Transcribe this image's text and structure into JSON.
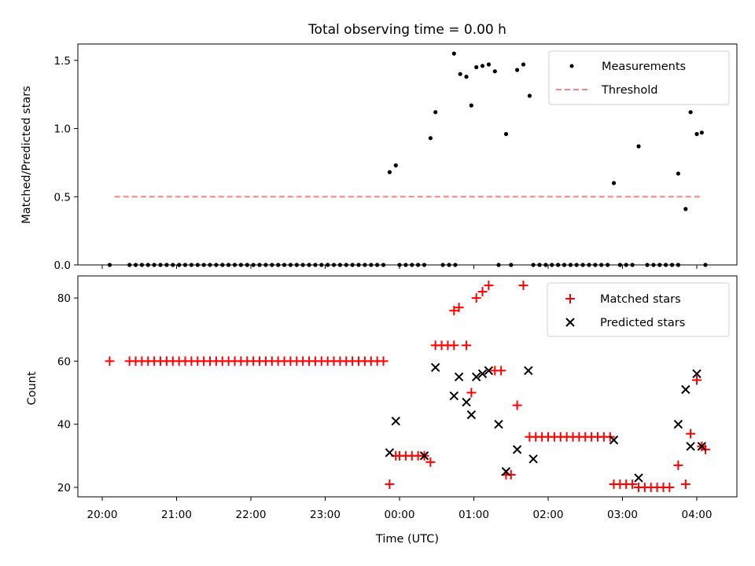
{
  "title": "Total observing time = 0.00 h",
  "x_label": "Time (UTC)",
  "x_ticks": [
    "20:00",
    "21:00",
    "22:00",
    "23:00",
    "00:00",
    "01:00",
    "02:00",
    "03:00",
    "04:00"
  ],
  "colors": {
    "measurements": "#000000",
    "threshold": "#ff8080",
    "matched": "#ff0000",
    "predicted": "#000000"
  },
  "chart_data": [
    {
      "type": "scatter",
      "panel": "top",
      "ylabel": "Matched/Predicted stars",
      "ylim": [
        0,
        1.62
      ],
      "yticks": [
        "0.0",
        "0.5",
        "1.0",
        "1.5"
      ],
      "legend": {
        "placement": "upper right",
        "entries": [
          "Measurements",
          "Threshold"
        ]
      },
      "threshold": {
        "name": "Threshold",
        "value": 0.5,
        "x_range": [
          "20:10",
          "04:05"
        ]
      },
      "series": [
        {
          "name": "Measurements",
          "points": [
            [
              "20:06",
              0
            ],
            [
              "20:22",
              0
            ],
            [
              "20:27",
              0
            ],
            [
              "20:32",
              0
            ],
            [
              "20:37",
              0
            ],
            [
              "20:42",
              0
            ],
            [
              "20:47",
              0
            ],
            [
              "20:52",
              0
            ],
            [
              "20:57",
              0
            ],
            [
              "21:02",
              0
            ],
            [
              "21:07",
              0
            ],
            [
              "21:12",
              0
            ],
            [
              "21:17",
              0
            ],
            [
              "21:22",
              0
            ],
            [
              "21:27",
              0
            ],
            [
              "21:32",
              0
            ],
            [
              "21:37",
              0
            ],
            [
              "21:42",
              0
            ],
            [
              "21:47",
              0
            ],
            [
              "21:52",
              0
            ],
            [
              "21:57",
              0
            ],
            [
              "22:02",
              0
            ],
            [
              "22:07",
              0
            ],
            [
              "22:12",
              0
            ],
            [
              "22:17",
              0
            ],
            [
              "22:22",
              0
            ],
            [
              "22:27",
              0
            ],
            [
              "22:32",
              0
            ],
            [
              "22:37",
              0
            ],
            [
              "22:42",
              0
            ],
            [
              "22:47",
              0
            ],
            [
              "22:52",
              0
            ],
            [
              "22:57",
              0
            ],
            [
              "23:02",
              0
            ],
            [
              "23:07",
              0
            ],
            [
              "23:12",
              0
            ],
            [
              "23:17",
              0
            ],
            [
              "23:22",
              0
            ],
            [
              "23:27",
              0
            ],
            [
              "23:32",
              0
            ],
            [
              "23:37",
              0
            ],
            [
              "23:42",
              0
            ],
            [
              "23:47",
              0
            ],
            [
              "23:52",
              0.68
            ],
            [
              "23:57",
              0.73
            ],
            [
              "00:00",
              0
            ],
            [
              "00:05",
              0
            ],
            [
              "00:10",
              0
            ],
            [
              "00:15",
              0
            ],
            [
              "00:20",
              0
            ],
            [
              "00:25",
              0.93
            ],
            [
              "00:29",
              1.12
            ],
            [
              "00:35",
              0
            ],
            [
              "00:40",
              0
            ],
            [
              "00:45",
              0
            ],
            [
              "00:44",
              1.55
            ],
            [
              "00:49",
              1.4
            ],
            [
              "00:54",
              1.38
            ],
            [
              "00:58",
              1.17
            ],
            [
              "01:02",
              1.45
            ],
            [
              "01:07",
              1.46
            ],
            [
              "01:12",
              1.47
            ],
            [
              "01:17",
              1.42
            ],
            [
              "01:20",
              0
            ],
            [
              "01:26",
              0.96
            ],
            [
              "01:30",
              0
            ],
            [
              "01:35",
              1.43
            ],
            [
              "01:40",
              1.47
            ],
            [
              "01:45",
              1.24
            ],
            [
              "01:48",
              0
            ],
            [
              "01:53",
              0
            ],
            [
              "01:58",
              0
            ],
            [
              "02:03",
              0
            ],
            [
              "02:08",
              0
            ],
            [
              "02:13",
              0
            ],
            [
              "02:18",
              0
            ],
            [
              "02:23",
              0
            ],
            [
              "02:28",
              0
            ],
            [
              "02:33",
              0
            ],
            [
              "02:38",
              0
            ],
            [
              "02:43",
              0
            ],
            [
              "02:48",
              0
            ],
            [
              "02:53",
              0.6
            ],
            [
              "02:58",
              0
            ],
            [
              "03:03",
              0
            ],
            [
              "03:08",
              0
            ],
            [
              "03:13",
              0.87
            ],
            [
              "03:20",
              0
            ],
            [
              "03:25",
              0
            ],
            [
              "03:30",
              0
            ],
            [
              "03:35",
              0
            ],
            [
              "03:40",
              0
            ],
            [
              "03:45",
              0
            ],
            [
              "03:45",
              0.67
            ],
            [
              "03:51",
              0.41
            ],
            [
              "03:55",
              1.12
            ],
            [
              "04:00",
              0.96
            ],
            [
              "04:04",
              0.97
            ],
            [
              "04:07",
              0
            ]
          ]
        }
      ]
    },
    {
      "type": "scatter",
      "panel": "bottom",
      "ylabel": "Count",
      "ylim": [
        17,
        87
      ],
      "yticks": [
        "20",
        "40",
        "60",
        "80"
      ],
      "legend": {
        "placement": "upper right",
        "entries": [
          "Matched stars",
          "Predicted stars"
        ]
      },
      "series": [
        {
          "name": "Matched stars",
          "marker": "+",
          "points": [
            [
              "20:06",
              60
            ],
            [
              "20:22",
              60
            ],
            [
              "20:27",
              60
            ],
            [
              "20:32",
              60
            ],
            [
              "20:37",
              60
            ],
            [
              "20:42",
              60
            ],
            [
              "20:47",
              60
            ],
            [
              "20:52",
              60
            ],
            [
              "20:57",
              60
            ],
            [
              "21:02",
              60
            ],
            [
              "21:07",
              60
            ],
            [
              "21:12",
              60
            ],
            [
              "21:17",
              60
            ],
            [
              "21:22",
              60
            ],
            [
              "21:27",
              60
            ],
            [
              "21:32",
              60
            ],
            [
              "21:37",
              60
            ],
            [
              "21:42",
              60
            ],
            [
              "21:47",
              60
            ],
            [
              "21:52",
              60
            ],
            [
              "21:57",
              60
            ],
            [
              "22:02",
              60
            ],
            [
              "22:07",
              60
            ],
            [
              "22:12",
              60
            ],
            [
              "22:17",
              60
            ],
            [
              "22:22",
              60
            ],
            [
              "22:27",
              60
            ],
            [
              "22:32",
              60
            ],
            [
              "22:37",
              60
            ],
            [
              "22:42",
              60
            ],
            [
              "22:47",
              60
            ],
            [
              "22:52",
              60
            ],
            [
              "22:57",
              60
            ],
            [
              "23:02",
              60
            ],
            [
              "23:07",
              60
            ],
            [
              "23:12",
              60
            ],
            [
              "23:17",
              60
            ],
            [
              "23:22",
              60
            ],
            [
              "23:27",
              60
            ],
            [
              "23:32",
              60
            ],
            [
              "23:37",
              60
            ],
            [
              "23:42",
              60
            ],
            [
              "23:47",
              60
            ],
            [
              "23:52",
              21
            ],
            [
              "23:57",
              30
            ],
            [
              "00:00",
              30
            ],
            [
              "00:05",
              30
            ],
            [
              "00:10",
              30
            ],
            [
              "00:15",
              30
            ],
            [
              "00:20",
              30
            ],
            [
              "00:25",
              28
            ],
            [
              "00:29",
              65
            ],
            [
              "00:34",
              65
            ],
            [
              "00:39",
              65
            ],
            [
              "00:44",
              65
            ],
            [
              "00:44",
              76
            ],
            [
              "00:48",
              77
            ],
            [
              "00:54",
              65
            ],
            [
              "00:58",
              50
            ],
            [
              "01:02",
              80
            ],
            [
              "01:07",
              82
            ],
            [
              "01:12",
              84
            ],
            [
              "01:17",
              57
            ],
            [
              "01:22",
              57
            ],
            [
              "01:26",
              24
            ],
            [
              "01:30",
              24
            ],
            [
              "01:35",
              46
            ],
            [
              "01:40",
              84
            ],
            [
              "01:45",
              36
            ],
            [
              "01:50",
              36
            ],
            [
              "01:55",
              36
            ],
            [
              "02:00",
              36
            ],
            [
              "02:05",
              36
            ],
            [
              "02:10",
              36
            ],
            [
              "02:15",
              36
            ],
            [
              "02:20",
              36
            ],
            [
              "02:25",
              36
            ],
            [
              "02:30",
              36
            ],
            [
              "02:35",
              36
            ],
            [
              "02:40",
              36
            ],
            [
              "02:45",
              36
            ],
            [
              "02:50",
              36
            ],
            [
              "02:53",
              21
            ],
            [
              "02:58",
              21
            ],
            [
              "03:03",
              21
            ],
            [
              "03:08",
              21
            ],
            [
              "03:13",
              20
            ],
            [
              "03:18",
              20
            ],
            [
              "03:23",
              20
            ],
            [
              "03:28",
              20
            ],
            [
              "03:33",
              20
            ],
            [
              "03:38",
              20
            ],
            [
              "03:45",
              27
            ],
            [
              "03:51",
              21
            ],
            [
              "03:55",
              37
            ],
            [
              "04:00",
              54
            ],
            [
              "04:04",
              33
            ],
            [
              "04:07",
              32
            ]
          ]
        },
        {
          "name": "Predicted stars",
          "marker": "x",
          "points": [
            [
              "23:52",
              31
            ],
            [
              "23:57",
              41
            ],
            [
              "00:20",
              30
            ],
            [
              "00:29",
              58
            ],
            [
              "00:44",
              49
            ],
            [
              "00:48",
              55
            ],
            [
              "00:54",
              47
            ],
            [
              "00:58",
              43
            ],
            [
              "01:02",
              55
            ],
            [
              "01:07",
              56
            ],
            [
              "01:12",
              57
            ],
            [
              "01:20",
              40
            ],
            [
              "01:26",
              25
            ],
            [
              "01:35",
              32
            ],
            [
              "01:44",
              57
            ],
            [
              "01:48",
              29
            ],
            [
              "02:53",
              35
            ],
            [
              "03:13",
              23
            ],
            [
              "03:45",
              40
            ],
            [
              "03:51",
              51
            ],
            [
              "03:55",
              33
            ],
            [
              "04:00",
              56
            ],
            [
              "04:04",
              33
            ]
          ]
        }
      ]
    }
  ]
}
